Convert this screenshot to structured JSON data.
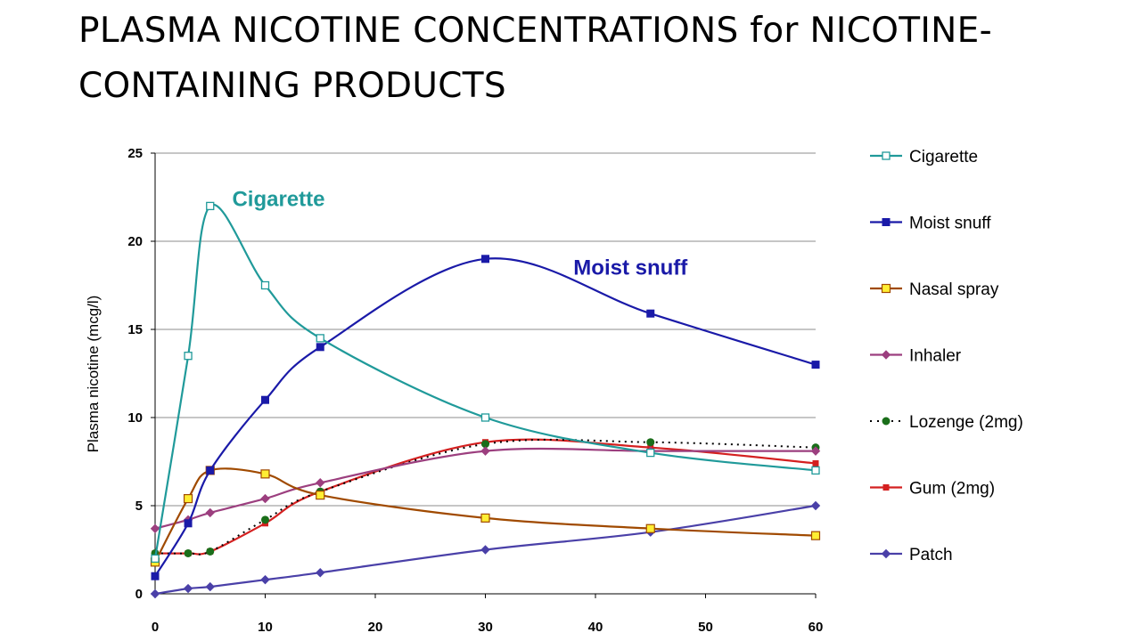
{
  "slide": {
    "title": "PLASMA NICOTINE CONCENTRATIONS for NICOTINE-CONTAINING PRODUCTS"
  },
  "chart_data": {
    "type": "line",
    "title": "",
    "xlabel": "",
    "ylabel": "Plasma nicotine (mcg/l)",
    "xlim": [
      0,
      60
    ],
    "ylim": [
      0,
      25
    ],
    "xticks": [
      "0",
      "10",
      "20",
      "30",
      "40",
      "50",
      "60"
    ],
    "yticks": [
      "0",
      "5",
      "10",
      "15",
      "20",
      "25"
    ],
    "grid": "horizontal",
    "legend": "right",
    "series": [
      {
        "name": "Cigarette",
        "color": "#209a9a",
        "marker": "square-open",
        "points": [
          [
            0,
            2.0
          ],
          [
            3,
            13.5
          ],
          [
            5,
            22.0
          ],
          [
            10,
            17.5
          ],
          [
            15,
            14.5
          ],
          [
            30,
            10.0
          ],
          [
            45,
            8.0
          ],
          [
            60,
            7.0
          ]
        ]
      },
      {
        "name": "Moist snuff",
        "color": "#1a1aa8",
        "marker": "square",
        "points": [
          [
            0,
            1.0
          ],
          [
            3,
            4.0
          ],
          [
            5,
            7.0
          ],
          [
            10,
            11.0
          ],
          [
            15,
            14.0
          ],
          [
            30,
            19.0
          ],
          [
            45,
            15.9
          ],
          [
            60,
            13.0
          ]
        ]
      },
      {
        "name": "Nasal spray",
        "color": "#a04a00",
        "marker": "square-yellow",
        "points": [
          [
            0,
            1.8
          ],
          [
            3,
            5.4
          ],
          [
            5,
            7.0
          ],
          [
            10,
            6.8
          ],
          [
            15,
            5.6
          ],
          [
            30,
            4.3
          ],
          [
            45,
            3.7
          ],
          [
            60,
            3.3
          ]
        ]
      },
      {
        "name": "Inhaler",
        "color": "#9c3f7f",
        "marker": "diamond",
        "points": [
          [
            0,
            3.7
          ],
          [
            3,
            4.2
          ],
          [
            5,
            4.6
          ],
          [
            10,
            5.4
          ],
          [
            15,
            6.3
          ],
          [
            30,
            8.1
          ],
          [
            45,
            8.1
          ],
          [
            60,
            8.1
          ]
        ]
      },
      {
        "name": "Lozenge (2mg)",
        "color": "#1a6e1a",
        "line_color": "#000000",
        "marker": "circle",
        "dashed": true,
        "points": [
          [
            0,
            2.3
          ],
          [
            3,
            2.3
          ],
          [
            5,
            2.4
          ],
          [
            10,
            4.2
          ],
          [
            15,
            5.8
          ],
          [
            30,
            8.5
          ],
          [
            45,
            8.6
          ],
          [
            60,
            8.3
          ]
        ]
      },
      {
        "name": "Gum (2mg)",
        "color": "#d42020",
        "marker": "square-small",
        "points": [
          [
            0,
            2.3
          ],
          [
            3,
            2.3
          ],
          [
            5,
            2.4
          ],
          [
            10,
            4.0
          ],
          [
            15,
            5.8
          ],
          [
            30,
            8.6
          ],
          [
            45,
            8.3
          ],
          [
            60,
            7.4
          ]
        ]
      },
      {
        "name": "Patch",
        "color": "#4a40a8",
        "marker": "diamond",
        "points": [
          [
            0,
            0.0
          ],
          [
            3,
            0.3
          ],
          [
            5,
            0.4
          ],
          [
            10,
            0.8
          ],
          [
            15,
            1.2
          ],
          [
            30,
            2.5
          ],
          [
            45,
            3.5
          ],
          [
            60,
            5.0
          ]
        ]
      }
    ],
    "annotations": [
      {
        "text": "Cigarette",
        "color": "#209a9a",
        "at": [
          7,
          22.0
        ]
      },
      {
        "text": "Moist snuff",
        "color": "#1a1aa8",
        "at": [
          38,
          18.1
        ]
      }
    ]
  }
}
